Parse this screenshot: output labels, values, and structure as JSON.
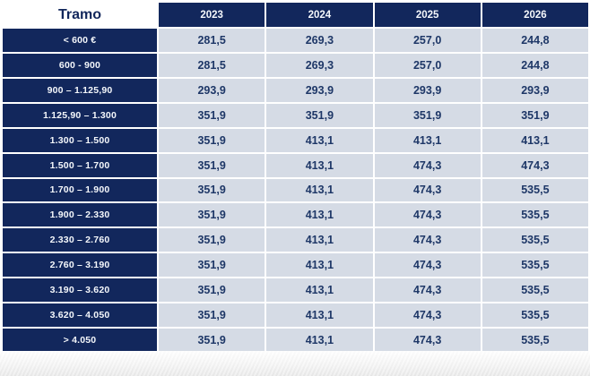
{
  "chart_data": {
    "type": "table",
    "title": "",
    "columns": [
      "Tramo",
      "2023",
      "2024",
      "2025",
      "2026"
    ],
    "rows": [
      [
        "< 600 €",
        "281,5",
        "269,3",
        "257,0",
        "244,8"
      ],
      [
        "600 - 900",
        "281,5",
        "269,3",
        "257,0",
        "244,8"
      ],
      [
        "900 – 1.125,90",
        "293,9",
        "293,9",
        "293,9",
        "293,9"
      ],
      [
        "1.125,90 – 1.300",
        "351,9",
        "351,9",
        "351,9",
        "351,9"
      ],
      [
        "1.300 – 1.500",
        "351,9",
        "413,1",
        "413,1",
        "413,1"
      ],
      [
        "1.500 – 1.700",
        "351,9",
        "413,1",
        "474,3",
        "474,3"
      ],
      [
        "1.700 – 1.900",
        "351,9",
        "413,1",
        "474,3",
        "535,5"
      ],
      [
        "1.900 – 2.330",
        "351,9",
        "413,1",
        "474,3",
        "535,5"
      ],
      [
        "2.330 – 2.760",
        "351,9",
        "413,1",
        "474,3",
        "535,5"
      ],
      [
        "2.760 – 3.190",
        "351,9",
        "413,1",
        "474,3",
        "535,5"
      ],
      [
        "3.190 – 3.620",
        "351,9",
        "413,1",
        "474,3",
        "535,5"
      ],
      [
        "3.620 – 4.050",
        "351,9",
        "413,1",
        "474,3",
        "535,5"
      ],
      [
        "> 4.050",
        "351,9",
        "413,1",
        "474,3",
        "535,5"
      ]
    ],
    "layout": {
      "header_position": "top",
      "row_label_column": "Tramo",
      "grid": "white separators"
    }
  },
  "colors": {
    "navy": "#12275c",
    "cell_bg": "#d5dbe5",
    "value_text": "#1e3767",
    "separator": "#ffffff"
  }
}
